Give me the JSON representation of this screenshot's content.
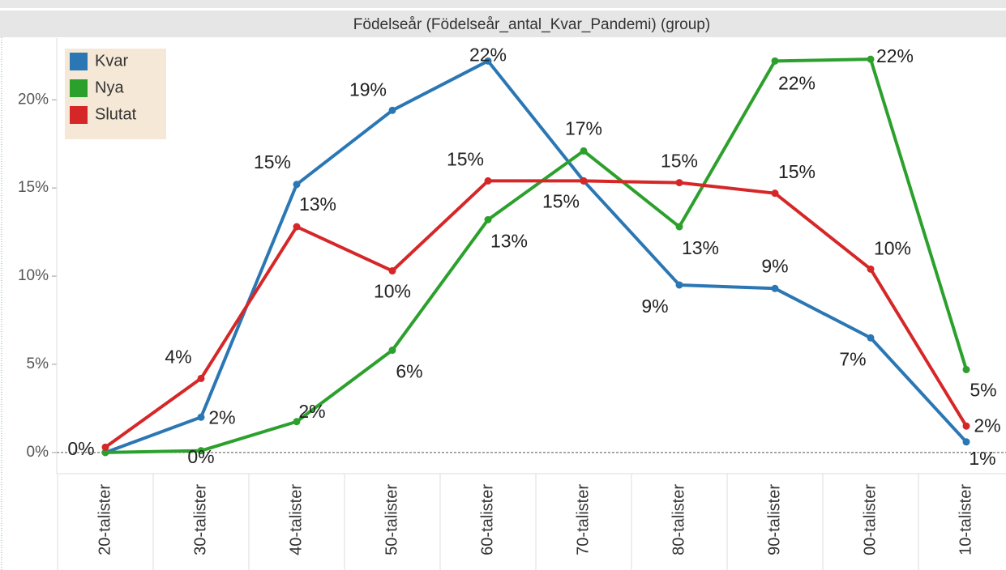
{
  "chart_data": {
    "type": "line",
    "header": "Födelseår (Födelseår_antal_Kvar_Pandemi) (group)",
    "categories": [
      "20-talister",
      "30-talister",
      "40-talister",
      "50-talister",
      "60-talister",
      "70-talister",
      "80-talister",
      "90-talister",
      "00-talister",
      "10-talister"
    ],
    "series": [
      {
        "name": "Kvar",
        "color": "#2a77b4",
        "values": [
          0,
          2.0,
          15.2,
          19.4,
          22.2,
          15.4,
          9.5,
          9.3,
          6.5,
          0.6
        ],
        "value_labels": [
          "0%",
          "2%",
          "15%",
          "19%",
          "22%",
          "15%",
          "9%",
          "9%",
          "7%",
          "1%"
        ]
      },
      {
        "name": "Nya",
        "color": "#2ca02c",
        "values": [
          0,
          0.1,
          1.75,
          5.8,
          13.2,
          17.1,
          12.8,
          22.2,
          22.3,
          4.7
        ],
        "value_labels": [
          null,
          "0%",
          "2%",
          "6%",
          "13%",
          "17%",
          "13%",
          "22%",
          "22%",
          "5%"
        ]
      },
      {
        "name": "Slutat",
        "color": "#d62728",
        "values": [
          0.3,
          4.2,
          12.8,
          10.3,
          15.4,
          15.4,
          15.3,
          14.7,
          10.4,
          1.5
        ],
        "value_labels": [
          null,
          "4%",
          "13%",
          "10%",
          "15%",
          null,
          "15%",
          "15%",
          "10%",
          "2%"
        ]
      }
    ],
    "ylim": [
      -1.2,
      23.5
    ],
    "yticks": [
      {
        "value": 0,
        "label": "0%"
      },
      {
        "value": 5,
        "label": "5%"
      },
      {
        "value": 10,
        "label": "10%"
      },
      {
        "value": 15,
        "label": "15%"
      },
      {
        "value": 20,
        "label": "20%"
      }
    ],
    "legend": "top-left"
  }
}
